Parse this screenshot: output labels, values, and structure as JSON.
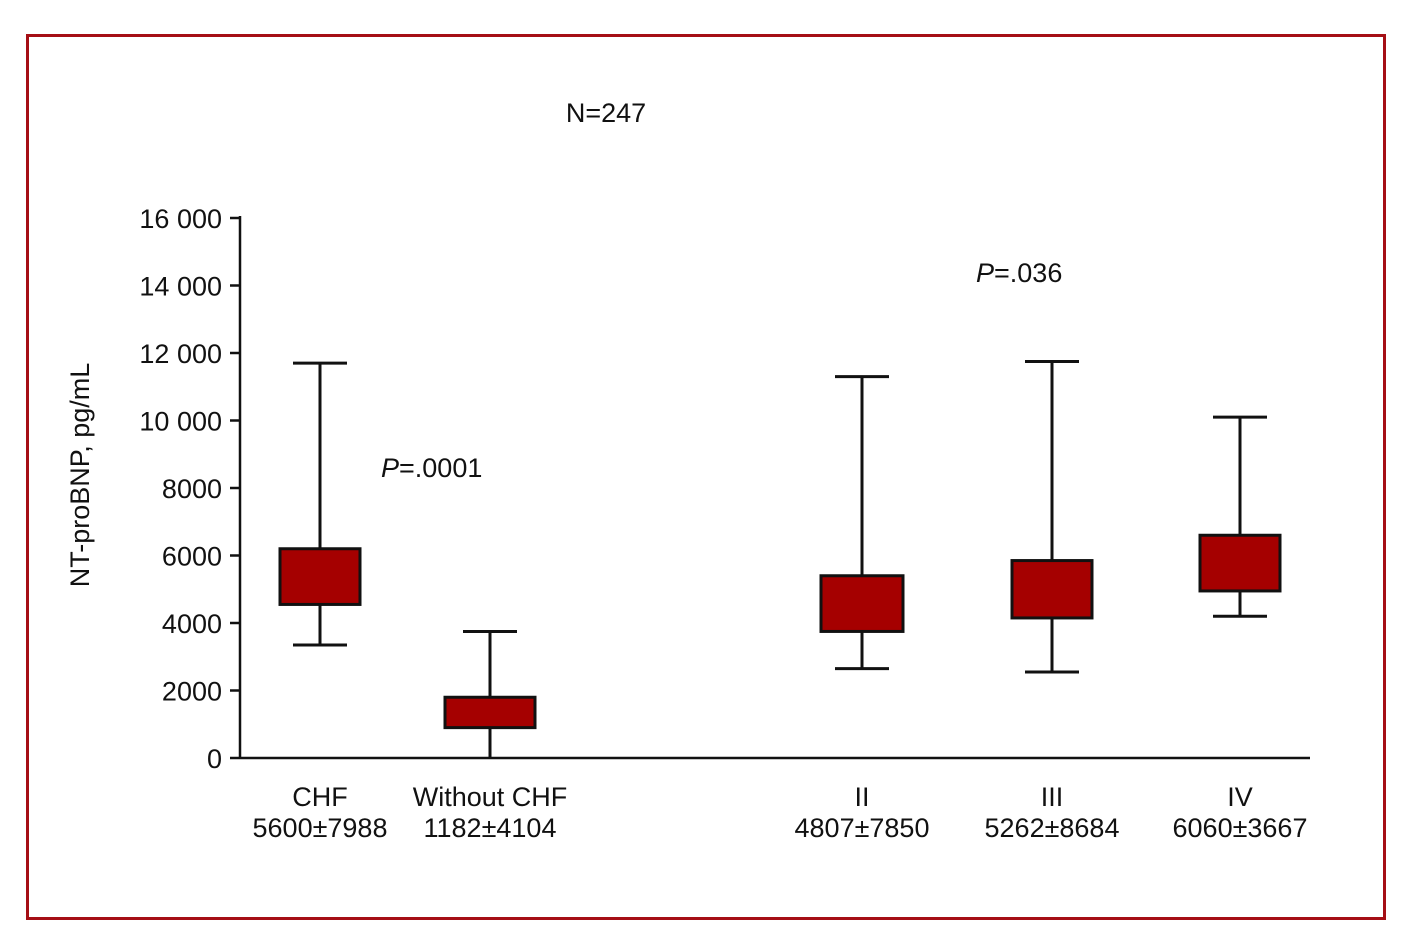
{
  "colors": {
    "frame_border": "#a50f15",
    "box_fill": "#a50000",
    "stroke": "#111111"
  },
  "chart_data": {
    "type": "box",
    "title": "N=247",
    "xlabel": "",
    "ylabel": "NT-proBNP, pg/mL",
    "ylim": [
      0,
      16000
    ],
    "yticks": [
      0,
      2000,
      4000,
      6000,
      8000,
      10000,
      12000,
      14000,
      16000
    ],
    "ytick_labels": [
      "0",
      "2000",
      "4000",
      "6000",
      "8000",
      "10 000",
      "12 000",
      "14 000",
      "16 000"
    ],
    "grid": false,
    "groups": [
      {
        "label": "CHF",
        "stat": "5600±7988",
        "whisker_low": 3350,
        "q1": 4550,
        "q3": 6200,
        "whisker_high": 11700
      },
      {
        "label": "Without CHF",
        "stat": "1182±4104",
        "whisker_low": 0,
        "q1": 900,
        "q3": 1800,
        "whisker_high": 3750
      },
      {
        "label": "II",
        "stat": "4807±7850",
        "whisker_low": 2650,
        "q1": 3750,
        "q3": 5400,
        "whisker_high": 11300
      },
      {
        "label": "III",
        "stat": "5262±8684",
        "whisker_low": 2550,
        "q1": 4150,
        "q3": 5850,
        "whisker_high": 11750
      },
      {
        "label": "IV",
        "stat": "6060±3667",
        "whisker_low": 4200,
        "q1": 4950,
        "q3": 6600,
        "whisker_high": 10100
      }
    ],
    "annotations": [
      {
        "p_letter": "P",
        "p_rest": "=.0001"
      },
      {
        "p_letter": "P",
        "p_rest": "=.036"
      }
    ]
  }
}
